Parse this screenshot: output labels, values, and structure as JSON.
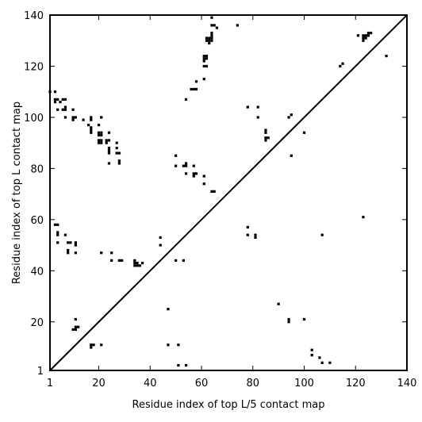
{
  "chart_data": {
    "type": "scatter",
    "xlabel": "Residue index of top L/5 contact map",
    "ylabel": "Residue index of top L contact map",
    "xlim": [
      1,
      140
    ],
    "ylim": [
      1,
      140
    ],
    "xticks": [
      1,
      20,
      40,
      60,
      80,
      100,
      120,
      140
    ],
    "yticks": [
      1,
      20,
      40,
      60,
      80,
      100,
      120,
      140
    ],
    "diagonal": true,
    "grid": false,
    "marker_color": "#000000",
    "upper_points": [
      [
        1,
        110
      ],
      [
        3,
        110
      ],
      [
        3,
        107
      ],
      [
        3,
        106
      ],
      [
        4,
        107
      ],
      [
        4,
        103
      ],
      [
        5,
        106
      ],
      [
        6,
        107
      ],
      [
        6,
        103
      ],
      [
        7,
        107
      ],
      [
        7,
        104
      ],
      [
        7,
        103
      ],
      [
        7,
        100
      ],
      [
        10,
        103
      ],
      [
        10,
        100
      ],
      [
        10,
        99
      ],
      [
        11,
        100
      ],
      [
        14,
        99
      ],
      [
        16,
        97
      ],
      [
        17,
        100
      ],
      [
        17,
        99
      ],
      [
        17,
        96
      ],
      [
        17,
        95
      ],
      [
        17,
        94
      ],
      [
        20,
        97
      ],
      [
        20,
        94
      ],
      [
        20,
        93
      ],
      [
        20,
        91
      ],
      [
        20,
        90
      ],
      [
        21,
        100
      ],
      [
        21,
        94
      ],
      [
        21,
        93
      ],
      [
        21,
        91
      ],
      [
        21,
        90
      ],
      [
        23,
        91
      ],
      [
        23,
        90
      ],
      [
        24,
        94
      ],
      [
        24,
        91
      ],
      [
        24,
        88
      ],
      [
        24,
        87
      ],
      [
        24,
        86
      ],
      [
        24,
        82
      ],
      [
        27,
        90
      ],
      [
        27,
        88
      ],
      [
        27,
        86
      ],
      [
        28,
        86
      ],
      [
        28,
        83
      ],
      [
        28,
        82
      ],
      [
        50,
        85
      ],
      [
        50,
        81
      ],
      [
        53,
        81
      ],
      [
        54,
        82
      ],
      [
        54,
        107
      ],
      [
        54,
        81
      ],
      [
        54,
        78
      ],
      [
        56,
        111
      ],
      [
        57,
        111
      ],
      [
        57,
        81
      ],
      [
        57,
        78
      ],
      [
        57,
        77
      ],
      [
        58,
        114
      ],
      [
        58,
        111
      ],
      [
        58,
        78
      ],
      [
        61,
        124
      ],
      [
        61,
        123
      ],
      [
        61,
        122
      ],
      [
        61,
        120
      ],
      [
        61,
        115
      ],
      [
        61,
        77
      ],
      [
        61,
        74
      ],
      [
        62,
        131
      ],
      [
        62,
        130
      ],
      [
        62,
        124
      ],
      [
        62,
        123
      ],
      [
        62,
        120
      ],
      [
        63,
        131
      ],
      [
        63,
        130
      ],
      [
        63,
        129
      ],
      [
        64,
        139
      ],
      [
        64,
        133
      ],
      [
        64,
        132
      ],
      [
        64,
        131
      ],
      [
        64,
        130
      ],
      [
        64,
        136
      ],
      [
        64,
        71
      ],
      [
        65,
        136
      ],
      [
        65,
        71
      ],
      [
        66,
        135
      ],
      [
        74,
        136
      ],
      [
        78,
        104
      ],
      [
        82,
        104
      ],
      [
        82,
        100
      ],
      [
        85,
        95
      ],
      [
        85,
        94
      ],
      [
        85,
        92
      ],
      [
        85,
        91
      ],
      [
        86,
        92
      ],
      [
        94,
        100
      ],
      [
        95,
        101
      ],
      [
        95,
        85
      ],
      [
        100,
        94
      ],
      [
        114,
        120
      ],
      [
        115,
        121
      ],
      [
        121,
        132
      ],
      [
        123,
        132
      ],
      [
        123,
        131
      ],
      [
        123,
        130
      ],
      [
        124,
        131
      ],
      [
        124,
        132
      ],
      [
        125,
        133
      ],
      [
        125,
        132
      ],
      [
        126,
        133
      ],
      [
        132,
        124
      ]
    ],
    "lower_points": [
      [
        3,
        58
      ],
      [
        4,
        58
      ],
      [
        4,
        55
      ],
      [
        4,
        54
      ],
      [
        4,
        51
      ],
      [
        7,
        54
      ],
      [
        8,
        51
      ],
      [
        8,
        48
      ],
      [
        8,
        47
      ],
      [
        9,
        51
      ],
      [
        10,
        17
      ],
      [
        11,
        21
      ],
      [
        11,
        18
      ],
      [
        11,
        17
      ],
      [
        11,
        51
      ],
      [
        11,
        50
      ],
      [
        11,
        47
      ],
      [
        12,
        18
      ],
      [
        17,
        11
      ],
      [
        17,
        10
      ],
      [
        18,
        11
      ],
      [
        21,
        47
      ],
      [
        21,
        11
      ],
      [
        25,
        47
      ],
      [
        25,
        44
      ],
      [
        28,
        44
      ],
      [
        29,
        44
      ],
      [
        34,
        44
      ],
      [
        34,
        43
      ],
      [
        34,
        42
      ],
      [
        35,
        43
      ],
      [
        35,
        42
      ],
      [
        36,
        42
      ],
      [
        37,
        43
      ],
      [
        44,
        53
      ],
      [
        44,
        50
      ],
      [
        47,
        25
      ],
      [
        47,
        11
      ],
      [
        50,
        44
      ],
      [
        51,
        11
      ],
      [
        51,
        3
      ],
      [
        53,
        44
      ],
      [
        54,
        3
      ],
      [
        78,
        57
      ],
      [
        78,
        54
      ],
      [
        81,
        54
      ],
      [
        81,
        53
      ],
      [
        90,
        27
      ],
      [
        94,
        21
      ],
      [
        94,
        20
      ],
      [
        100,
        21
      ],
      [
        103,
        9
      ],
      [
        103,
        7
      ],
      [
        106,
        6
      ],
      [
        107,
        54
      ],
      [
        107,
        4
      ],
      [
        110,
        4
      ],
      [
        123,
        61
      ]
    ]
  }
}
